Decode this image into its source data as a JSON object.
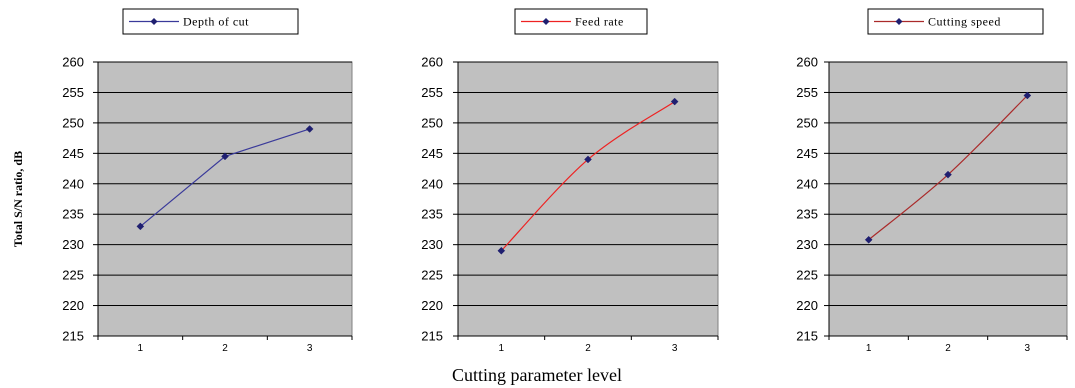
{
  "chart_data": [
    {
      "type": "line",
      "categories": [
        "1",
        "2",
        "3"
      ],
      "series": [
        {
          "name": "Depth of cut",
          "values": [
            233,
            244.5,
            249
          ],
          "color": "#3a3a9a",
          "marker_color": "#1f1f70"
        }
      ],
      "ylim": [
        215,
        260
      ],
      "yticks": [
        "215",
        "220",
        "225",
        "230",
        "235",
        "240",
        "245",
        "250",
        "255",
        "260"
      ],
      "ylabel": "Total S/N ratio, dB",
      "grid": true,
      "legend": "top-center"
    },
    {
      "type": "line",
      "categories": [
        "1",
        "2",
        "3"
      ],
      "series": [
        {
          "name": "Feed rate",
          "values": [
            229,
            244,
            253.5
          ],
          "color": "#ee2222",
          "marker_color": "#1f1f70"
        }
      ],
      "ylim": [
        215,
        260
      ],
      "yticks": [
        "215",
        "220",
        "225",
        "230",
        "235",
        "240",
        "245",
        "250",
        "255",
        "260"
      ],
      "grid": true,
      "legend": "top-center"
    },
    {
      "type": "line",
      "categories": [
        "1",
        "2",
        "3"
      ],
      "series": [
        {
          "name": "Cutting speed",
          "values": [
            230.8,
            241.5,
            254.5
          ],
          "color": "#aa2a2a",
          "marker_color": "#1f1f70"
        }
      ],
      "ylim": [
        215,
        260
      ],
      "yticks": [
        "215",
        "220",
        "225",
        "230",
        "235",
        "240",
        "245",
        "250",
        "255",
        "260"
      ],
      "grid": true,
      "legend": "top-center"
    }
  ],
  "shared_xlabel": "Cutting parameter level",
  "plot_background": "#c0c0c0"
}
